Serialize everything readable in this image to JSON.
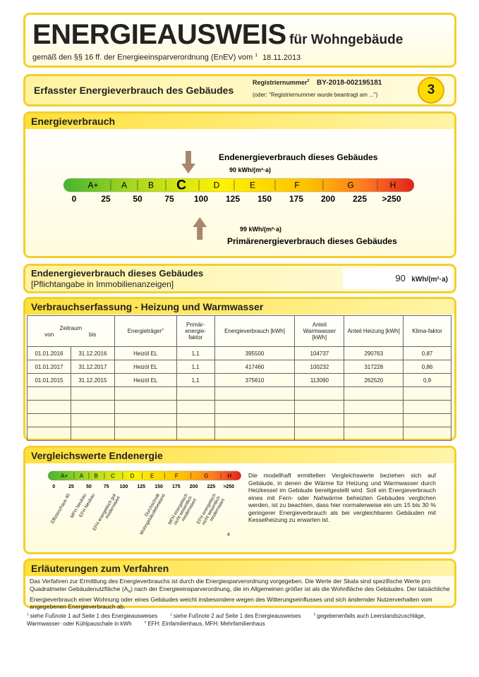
{
  "header": {
    "title": "ENERGIEAUSWEIS",
    "title_suffix": "für Wohngebäude",
    "subtitle": "gemäß den §§ 16 ff. der Energieeinsparverordnung (EnEV) vom",
    "subtitle_note": "1",
    "date": "18.11.2013"
  },
  "registration": {
    "heading": "Erfasster Energieverbrauch des Gebäudes",
    "label": "Registriernummer",
    "label_note": "2",
    "number": "BY-2018-002195181",
    "alternative": "(oder: \"Registriernummer wurde beantragt am ...\")",
    "page": "3"
  },
  "consumption": {
    "title": "Energieverbrauch",
    "classes": [
      "A+",
      "A",
      "B",
      "C",
      "D",
      "E",
      "F",
      "G",
      "H"
    ],
    "ticks": [
      0,
      25,
      50,
      75,
      100,
      125,
      150,
      175,
      200,
      225,
      {
        "value": 250,
        "label": ">250"
      }
    ],
    "final": {
      "label": "Endenergieverbrauch dieses Gebäudes",
      "value": 90,
      "unit": "kWh/(m²·a)"
    },
    "primary": {
      "label": "Primärenergieverbrauch dieses Gebäudes",
      "value": 99,
      "unit": "kWh/(m²·a)"
    }
  },
  "final_energy": {
    "title": "Endenergieverbrauch dieses Gebäudes",
    "note": "[Pflichtangabe in Immobilienanzeigen]",
    "value": 90,
    "unit": "kWh/(m²·a)"
  },
  "table": {
    "title": "Verbrauchserfassung - Heizung und Warmwasser",
    "period": "Zeitraum",
    "from": "von",
    "to": "bis",
    "carrier": "Energieträger",
    "carrier_note": "3",
    "headers": [
      "Primär-energie-faktor",
      "Energieverbrauch [kWh]",
      "Anteil Warmwasser [kWh]",
      "Anteil Heizung [kWh]",
      "Klima-faktor"
    ],
    "rows": [
      [
        "01.01.2016",
        "31.12.2016",
        "Heizöl EL",
        "1,1",
        395500,
        104737,
        290763,
        "0,87"
      ],
      [
        "01.01.2017",
        "31.12.2017",
        "Heizöl EL",
        "1,1",
        417460,
        100232,
        317228,
        "0,86"
      ],
      [
        "01.01.2015",
        "31.12.2015",
        "Heizöl EL",
        "1,1",
        375610,
        113090,
        262520,
        "0,9"
      ]
    ]
  },
  "comparison": {
    "title": "Vergleichswerte Endenergie",
    "references": [
      "Effizienzhaus 40",
      "MFH Neubau",
      "EFH Neubau",
      "EFH energetisch gut modernisiert",
      "Durchschnitt Wohngebäudebestand",
      "MFH energetisch nicht wesentlich modernisiert",
      "EFH energetisch nicht wesentlich modernisiert"
    ],
    "note": "4",
    "text": "Die modellhaft ermittelten Vergleichswerte beziehen sich auf Gebäude, in denen die Wärme für Heizung und Warmwasser durch Heizkessel im Gebäude bereitgestellt wird. Soll ein Energieverbrauch eines mit Fern- oder Nahwärme beheizten Gebäudes verglichen werden, ist zu beachten, dass hier normalerweise ein um 15 bis 30 % geringerer Energieverbrauch als bei vergleichbaren Gebäuden mit Kesselheizung zu erwarten ist."
  },
  "explanation": {
    "title": "Erläuterungen zum Verfahren",
    "text_1": "Das Verfahren zur Ermittlung des Energieverbrauchs ist durch die Energiesparverordnung vorgegeben. Die Werte der Skala sind spezifische Werte pro Quadratmeter Gebäudenutzfläche (A",
    "text_sub": "N",
    "text_2": ") nach der Energieeinsparverordnung, die im Allgemeinen größer ist als die Wohnfläche des Gebäudes. Der tatsächliche Energieverbrauch einer Wohnung oder eines Gebäudes weicht insbesondere wegen des Witterungseinflusses und sich ändernder Nutzerverhalten vom angegebenen Energieverbrauch ab."
  },
  "footnotes": [
    {
      "mark": "1",
      "text": "siehe Fußnote 1 auf Seite 1 des Energieausweises"
    },
    {
      "mark": "2",
      "text": "siehe Fußnote 2 auf Seite 1 des Energieausweises"
    },
    {
      "mark": "3",
      "text": "gegebenenfalls auch Leerstandszuschläge, Warmwasser- oder Kühlpauschale in kWh"
    },
    {
      "mark": "4",
      "text": "EFH: Einfamilienhaus, MFH: Mehrfamilienhaus"
    }
  ]
}
